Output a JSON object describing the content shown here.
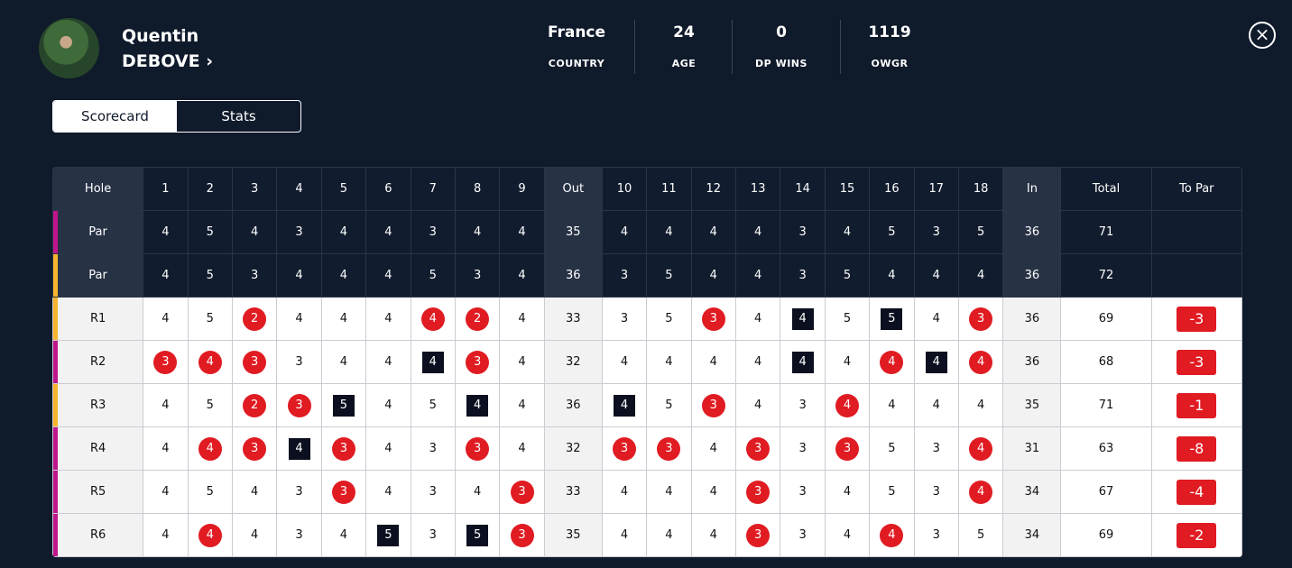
{
  "player": {
    "first_name": "Quentin",
    "last_name": "DEBOVE"
  },
  "stats": [
    {
      "value": "France",
      "label": "COUNTRY"
    },
    {
      "value": "24",
      "label": "AGE"
    },
    {
      "value": "0",
      "label": "DP WINS"
    },
    {
      "value": "1119",
      "label": "OWGR"
    }
  ],
  "tabs": [
    "Scorecard",
    "Stats"
  ],
  "table": {
    "header": [
      "Hole",
      "1",
      "2",
      "3",
      "4",
      "5",
      "6",
      "7",
      "8",
      "9",
      "Out",
      "10",
      "11",
      "12",
      "13",
      "14",
      "15",
      "16",
      "17",
      "18",
      "In",
      "Total",
      "To Par"
    ],
    "rows": [
      {
        "label": "Par",
        "color": "#c0158c",
        "scores": [
          4,
          5,
          4,
          3,
          4,
          4,
          3,
          4,
          4,
          35,
          4,
          4,
          4,
          4,
          3,
          4,
          5,
          3,
          5,
          36,
          71
        ]
      },
      {
        "label": "Par",
        "color": "#f6b52c",
        "scores": [
          4,
          5,
          3,
          4,
          4,
          4,
          5,
          3,
          4,
          36,
          3,
          5,
          4,
          4,
          3,
          5,
          4,
          4,
          4,
          36,
          72
        ]
      },
      {
        "label": "R1",
        "color": "#f6b52c",
        "scores": [
          4,
          5,
          2,
          4,
          4,
          4,
          4,
          2,
          4,
          33,
          3,
          5,
          3,
          4,
          4,
          5,
          5,
          4,
          3,
          36,
          69
        ],
        "to_par": -3
      },
      {
        "label": "R2",
        "color": "#c0158c",
        "scores": [
          3,
          4,
          3,
          3,
          4,
          4,
          4,
          3,
          4,
          32,
          4,
          4,
          4,
          4,
          4,
          4,
          4,
          4,
          4,
          36,
          68
        ],
        "to_par": -3
      },
      {
        "label": "R3",
        "color": "#f6b52c",
        "scores": [
          4,
          5,
          2,
          3,
          5,
          4,
          5,
          4,
          4,
          36,
          4,
          5,
          3,
          4,
          3,
          4,
          4,
          4,
          4,
          35,
          71
        ],
        "to_par": -1
      },
      {
        "label": "R4",
        "color": "#c0158c",
        "scores": [
          4,
          4,
          3,
          4,
          3,
          4,
          3,
          3,
          4,
          32,
          3,
          3,
          4,
          3,
          3,
          3,
          5,
          3,
          4,
          31,
          63
        ],
        "to_par": -8
      },
      {
        "label": "R5",
        "color": "#c0158c",
        "scores": [
          4,
          5,
          4,
          3,
          3,
          4,
          3,
          4,
          3,
          33,
          4,
          4,
          4,
          3,
          3,
          4,
          5,
          3,
          4,
          34,
          67
        ],
        "to_par": -4
      },
      {
        "label": "R6",
        "color": "#c0158c",
        "scores": [
          4,
          4,
          4,
          3,
          4,
          5,
          3,
          5,
          3,
          35,
          4,
          4,
          4,
          3,
          3,
          4,
          4,
          3,
          5,
          34,
          69
        ],
        "to_par": -2
      }
    ]
  }
}
